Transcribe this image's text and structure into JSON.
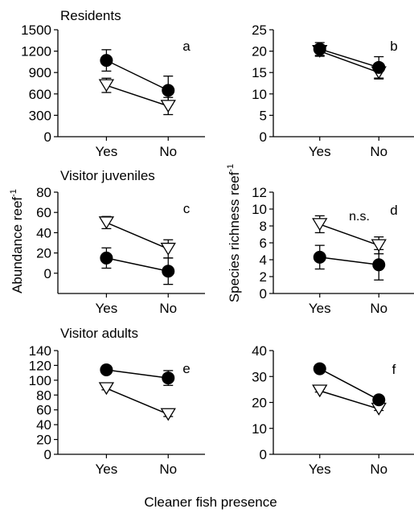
{
  "figure": {
    "ylabel_left": "Abundance reef",
    "ylabel_right": "Species richness reef",
    "ylabel_superscript": "-1",
    "xlabel": "Cleaner fish presence"
  },
  "chart_data": [
    {
      "type": "line",
      "panel": "a",
      "title": "Residents",
      "categories": [
        "Yes",
        "No"
      ],
      "ylim": [
        0,
        1500
      ],
      "yticks": [
        0,
        300,
        600,
        900,
        1200,
        1500
      ],
      "series": [
        {
          "marker": "filled-circle",
          "values": [
            1070,
            650
          ],
          "errors": [
            150,
            200
          ]
        },
        {
          "marker": "open-triangle",
          "values": [
            720,
            430
          ],
          "errors": [
            100,
            120
          ]
        }
      ]
    },
    {
      "type": "line",
      "panel": "b",
      "title": "",
      "categories": [
        "Yes",
        "No"
      ],
      "ylim": [
        0,
        25
      ],
      "yticks": [
        0,
        5,
        10,
        15,
        20,
        25
      ],
      "series": [
        {
          "marker": "filled-circle",
          "values": [
            20.5,
            16.2
          ],
          "errors": [
            1.5,
            2.5
          ]
        },
        {
          "marker": "open-triangle",
          "values": [
            20.0,
            15.0
          ],
          "errors": [
            1.2,
            1.5
          ]
        }
      ]
    },
    {
      "type": "line",
      "panel": "c",
      "title": "Visitor juveniles",
      "categories": [
        "Yes",
        "No"
      ],
      "ylim": [
        -20,
        80
      ],
      "yticks": [
        0,
        20,
        40,
        60,
        80
      ],
      "series": [
        {
          "marker": "filled-circle",
          "values": [
            15,
            2
          ],
          "errors": [
            10,
            13
          ]
        },
        {
          "marker": "open-triangle",
          "values": [
            50,
            24
          ],
          "errors": [
            6,
            9
          ]
        }
      ]
    },
    {
      "type": "line",
      "panel": "d",
      "title": "",
      "annotation": "n.s.",
      "categories": [
        "Yes",
        "No"
      ],
      "ylim": [
        0,
        12
      ],
      "yticks": [
        0,
        2,
        4,
        6,
        8,
        10,
        12
      ],
      "series": [
        {
          "marker": "filled-circle",
          "values": [
            4.3,
            3.4
          ],
          "errors": [
            1.4,
            1.8
          ]
        },
        {
          "marker": "open-triangle",
          "values": [
            8.2,
            5.7
          ],
          "errors": [
            1.0,
            1.0
          ]
        }
      ]
    },
    {
      "type": "line",
      "panel": "e",
      "title": "Visitor adults",
      "categories": [
        "Yes",
        "No"
      ],
      "ylim": [
        0,
        140
      ],
      "yticks": [
        0,
        20,
        40,
        60,
        80,
        100,
        120,
        140
      ],
      "series": [
        {
          "marker": "filled-circle",
          "values": [
            114,
            103
          ],
          "errors": [
            3,
            10
          ]
        },
        {
          "marker": "open-triangle",
          "values": [
            89,
            54
          ],
          "errors": [
            2,
            3
          ]
        }
      ]
    },
    {
      "type": "line",
      "panel": "f",
      "title": "",
      "categories": [
        "Yes",
        "No"
      ],
      "ylim": [
        0,
        40
      ],
      "yticks": [
        0,
        10,
        20,
        30,
        40
      ],
      "series": [
        {
          "marker": "filled-circle",
          "values": [
            33,
            21
          ],
          "errors": [
            0.6,
            1.2
          ]
        },
        {
          "marker": "open-triangle",
          "values": [
            24.5,
            17.5
          ],
          "errors": [
            0.5,
            0.6
          ]
        }
      ]
    }
  ]
}
